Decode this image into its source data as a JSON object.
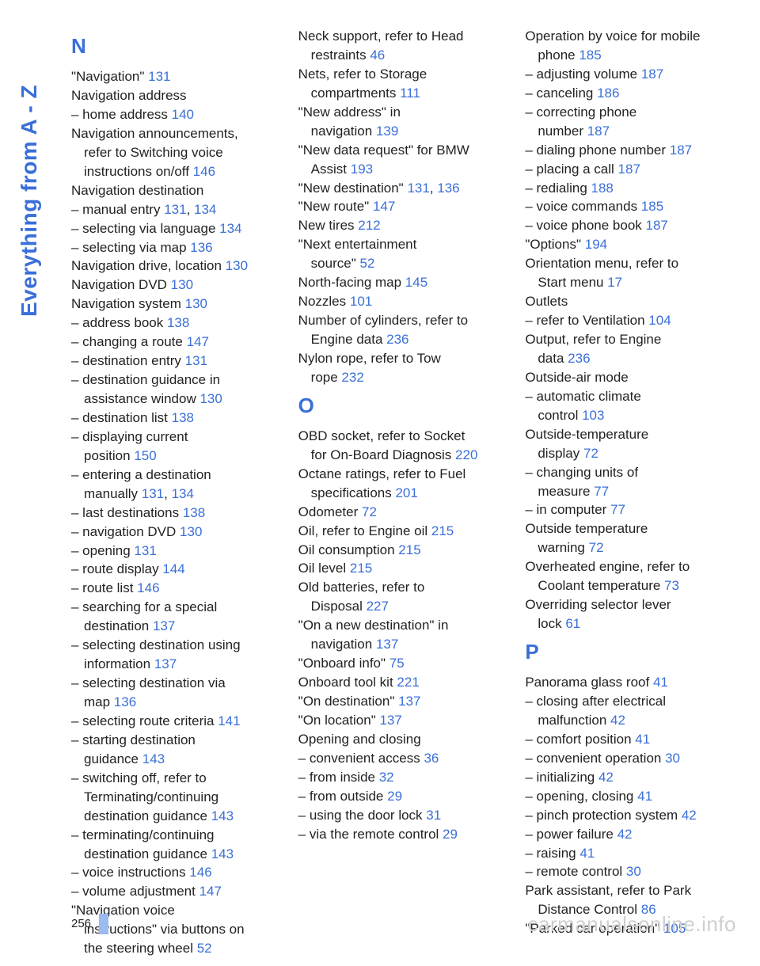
{
  "side_label": "Everything from A - Z",
  "page_number": "256",
  "watermark": "carmanualsonline.info",
  "columns": [
    {
      "blocks": [
        {
          "letter": "N",
          "entries": [
            {
              "text": "\"Navigation\" ",
              "links": [
                "131"
              ]
            },
            {
              "text": "Navigation address",
              "links": []
            },
            {
              "text": "– home address ",
              "links": [
                "140"
              ]
            },
            {
              "text": "Navigation announcements,",
              "links": []
            },
            {
              "text": "refer to Switching voice",
              "indent": true,
              "links": []
            },
            {
              "text": "instructions on/off ",
              "indent": true,
              "links": [
                "146"
              ]
            },
            {
              "text": "Navigation destination",
              "links": []
            },
            {
              "text": "– manual entry ",
              "links": [
                "131",
                "134"
              ]
            },
            {
              "text": "– selecting via language ",
              "links": [
                "134"
              ]
            },
            {
              "text": "– selecting via map ",
              "links": [
                "136"
              ]
            },
            {
              "text": "Navigation drive, location ",
              "links": [
                "130"
              ]
            },
            {
              "text": "Navigation DVD ",
              "links": [
                "130"
              ]
            },
            {
              "text": "Navigation system ",
              "links": [
                "130"
              ]
            },
            {
              "text": "– address book ",
              "links": [
                "138"
              ]
            },
            {
              "text": "– changing a route ",
              "links": [
                "147"
              ]
            },
            {
              "text": "– destination entry ",
              "links": [
                "131"
              ]
            },
            {
              "text": "– destination guidance in",
              "links": []
            },
            {
              "text": "assistance window ",
              "indent": true,
              "links": [
                "130"
              ]
            },
            {
              "text": "– destination list ",
              "links": [
                "138"
              ]
            },
            {
              "text": "– displaying current",
              "links": []
            },
            {
              "text": "position ",
              "indent": true,
              "links": [
                "150"
              ]
            },
            {
              "text": "– entering a destination",
              "links": []
            },
            {
              "text": "manually ",
              "indent": true,
              "links": [
                "131",
                "134"
              ]
            },
            {
              "text": "– last destinations ",
              "links": [
                "138"
              ]
            },
            {
              "text": "– navigation DVD ",
              "links": [
                "130"
              ]
            },
            {
              "text": "– opening ",
              "links": [
                "131"
              ]
            },
            {
              "text": "– route display ",
              "links": [
                "144"
              ]
            },
            {
              "text": "– route list ",
              "links": [
                "146"
              ]
            },
            {
              "text": "– searching for a special",
              "links": []
            },
            {
              "text": "destination ",
              "indent": true,
              "links": [
                "137"
              ]
            },
            {
              "text": "– selecting destination using",
              "links": []
            },
            {
              "text": "information ",
              "indent": true,
              "links": [
                "137"
              ]
            },
            {
              "text": "– selecting destination via",
              "links": []
            },
            {
              "text": "map ",
              "indent": true,
              "links": [
                "136"
              ]
            },
            {
              "text": "– selecting route criteria ",
              "links": [
                "141"
              ]
            },
            {
              "text": "– starting destination",
              "links": []
            },
            {
              "text": "guidance ",
              "indent": true,
              "links": [
                "143"
              ]
            },
            {
              "text": "– switching off, refer to",
              "links": []
            },
            {
              "text": "Terminating/continuing",
              "indent": true,
              "links": []
            },
            {
              "text": "destination guidance ",
              "indent": true,
              "links": [
                "143"
              ]
            },
            {
              "text": "– terminating/continuing",
              "links": []
            },
            {
              "text": "destination guidance ",
              "indent": true,
              "links": [
                "143"
              ]
            },
            {
              "text": "– voice instructions ",
              "links": [
                "146"
              ]
            },
            {
              "text": "– volume adjustment ",
              "links": [
                "147"
              ]
            },
            {
              "text": "\"Navigation voice",
              "links": []
            },
            {
              "text": "instructions\" via buttons on",
              "indent": true,
              "links": []
            },
            {
              "text": "the steering wheel ",
              "indent": true,
              "links": [
                "52"
              ]
            }
          ]
        }
      ]
    },
    {
      "blocks": [
        {
          "entries": [
            {
              "text": "Neck support, refer to Head",
              "links": []
            },
            {
              "text": "restraints ",
              "indent": true,
              "links": [
                "46"
              ]
            },
            {
              "text": "Nets, refer to Storage",
              "links": []
            },
            {
              "text": "compartments ",
              "indent": true,
              "links": [
                "111"
              ]
            },
            {
              "text": "\"New address\" in",
              "links": []
            },
            {
              "text": "navigation ",
              "indent": true,
              "links": [
                "139"
              ]
            },
            {
              "text": "\"New data request\" for BMW",
              "links": []
            },
            {
              "text": "Assist ",
              "indent": true,
              "links": [
                "193"
              ]
            },
            {
              "text": "\"New destination\" ",
              "links": [
                "131",
                "136"
              ]
            },
            {
              "text": "\"New route\" ",
              "links": [
                "147"
              ]
            },
            {
              "text": "New tires ",
              "links": [
                "212"
              ]
            },
            {
              "text": "\"Next entertainment",
              "links": []
            },
            {
              "text": "source\" ",
              "indent": true,
              "links": [
                "52"
              ]
            },
            {
              "text": "North-facing map ",
              "links": [
                "145"
              ]
            },
            {
              "text": "Nozzles ",
              "links": [
                "101"
              ]
            },
            {
              "text": "Number of cylinders, refer to",
              "links": []
            },
            {
              "text": "Engine data ",
              "indent": true,
              "links": [
                "236"
              ]
            },
            {
              "text": "Nylon rope, refer to Tow",
              "links": []
            },
            {
              "text": "rope ",
              "indent": true,
              "links": [
                "232"
              ]
            }
          ]
        },
        {
          "letter": "O",
          "entries": [
            {
              "text": "OBD socket, refer to Socket",
              "links": []
            },
            {
              "text": "for On-Board Diagnosis ",
              "indent": true,
              "links": [
                "220"
              ]
            },
            {
              "text": "Octane ratings, refer to Fuel",
              "links": []
            },
            {
              "text": "specifications ",
              "indent": true,
              "links": [
                "201"
              ]
            },
            {
              "text": "Odometer ",
              "links": [
                "72"
              ]
            },
            {
              "text": "Oil, refer to Engine oil ",
              "links": [
                "215"
              ]
            },
            {
              "text": "Oil consumption ",
              "links": [
                "215"
              ]
            },
            {
              "text": "Oil level ",
              "links": [
                "215"
              ]
            },
            {
              "text": "Old batteries, refer to",
              "links": []
            },
            {
              "text": "Disposal ",
              "indent": true,
              "links": [
                "227"
              ]
            },
            {
              "text": "\"On a new destination\" in",
              "links": []
            },
            {
              "text": "navigation ",
              "indent": true,
              "links": [
                "137"
              ]
            },
            {
              "text": "\"Onboard info\" ",
              "links": [
                "75"
              ]
            },
            {
              "text": "Onboard tool kit ",
              "links": [
                "221"
              ]
            },
            {
              "text": "\"On destination\" ",
              "links": [
                "137"
              ]
            },
            {
              "text": "\"On location\" ",
              "links": [
                "137"
              ]
            },
            {
              "text": "Opening and closing",
              "links": []
            },
            {
              "text": "– convenient access ",
              "links": [
                "36"
              ]
            },
            {
              "text": "– from inside ",
              "links": [
                "32"
              ]
            },
            {
              "text": "– from outside ",
              "links": [
                "29"
              ]
            },
            {
              "text": "– using the door lock ",
              "links": [
                "31"
              ]
            },
            {
              "text": "– via the remote control ",
              "links": [
                "29"
              ]
            }
          ]
        }
      ]
    },
    {
      "blocks": [
        {
          "entries": [
            {
              "text": "Operation by voice for mobile",
              "links": []
            },
            {
              "text": "phone ",
              "indent": true,
              "links": [
                "185"
              ]
            },
            {
              "text": "– adjusting volume ",
              "links": [
                "187"
              ]
            },
            {
              "text": "– canceling ",
              "links": [
                "186"
              ]
            },
            {
              "text": "– correcting phone",
              "links": []
            },
            {
              "text": "number ",
              "indent": true,
              "links": [
                "187"
              ]
            },
            {
              "text": "– dialing phone number ",
              "links": [
                "187"
              ]
            },
            {
              "text": "– placing a call ",
              "links": [
                "187"
              ]
            },
            {
              "text": "– redialing ",
              "links": [
                "188"
              ]
            },
            {
              "text": "– voice commands ",
              "links": [
                "185"
              ]
            },
            {
              "text": "– voice phone book ",
              "links": [
                "187"
              ]
            },
            {
              "text": "\"Options\" ",
              "links": [
                "194"
              ]
            },
            {
              "text": "Orientation menu, refer to",
              "links": []
            },
            {
              "text": "Start menu ",
              "indent": true,
              "links": [
                "17"
              ]
            },
            {
              "text": "Outlets",
              "links": []
            },
            {
              "text": "– refer to Ventilation ",
              "links": [
                "104"
              ]
            },
            {
              "text": "Output, refer to Engine",
              "links": []
            },
            {
              "text": "data ",
              "indent": true,
              "links": [
                "236"
              ]
            },
            {
              "text": "Outside-air mode",
              "links": []
            },
            {
              "text": "– automatic climate",
              "links": []
            },
            {
              "text": "control ",
              "indent": true,
              "links": [
                "103"
              ]
            },
            {
              "text": "Outside-temperature",
              "links": []
            },
            {
              "text": "display ",
              "indent": true,
              "links": [
                "72"
              ]
            },
            {
              "text": "– changing units of",
              "links": []
            },
            {
              "text": "measure ",
              "indent": true,
              "links": [
                "77"
              ]
            },
            {
              "text": "– in computer ",
              "links": [
                "77"
              ]
            },
            {
              "text": "Outside temperature",
              "links": []
            },
            {
              "text": "warning ",
              "indent": true,
              "links": [
                "72"
              ]
            },
            {
              "text": "Overheated engine, refer to",
              "links": []
            },
            {
              "text": "Coolant temperature ",
              "indent": true,
              "links": [
                "73"
              ]
            },
            {
              "text": "Overriding selector lever",
              "links": []
            },
            {
              "text": "lock ",
              "indent": true,
              "links": [
                "61"
              ]
            }
          ]
        },
        {
          "letter": "P",
          "entries": [
            {
              "text": "Panorama glass roof ",
              "links": [
                "41"
              ]
            },
            {
              "text": "– closing after electrical",
              "links": []
            },
            {
              "text": "malfunction ",
              "indent": true,
              "links": [
                "42"
              ]
            },
            {
              "text": "– comfort position ",
              "links": [
                "41"
              ]
            },
            {
              "text": "– convenient operation ",
              "links": [
                "30"
              ]
            },
            {
              "text": "– initializing ",
              "links": [
                "42"
              ]
            },
            {
              "text": "– opening, closing ",
              "links": [
                "41"
              ]
            },
            {
              "text": "– pinch protection system ",
              "links": [
                "42"
              ]
            },
            {
              "text": "– power failure ",
              "links": [
                "42"
              ]
            },
            {
              "text": "– raising ",
              "links": [
                "41"
              ]
            },
            {
              "text": "– remote control ",
              "links": [
                "30"
              ]
            },
            {
              "text": "Park assistant, refer to Park",
              "links": []
            },
            {
              "text": "Distance Control ",
              "indent": true,
              "links": [
                "86"
              ]
            },
            {
              "text": "\"Parked car operation\" ",
              "links": [
                "105"
              ]
            }
          ]
        }
      ]
    }
  ]
}
